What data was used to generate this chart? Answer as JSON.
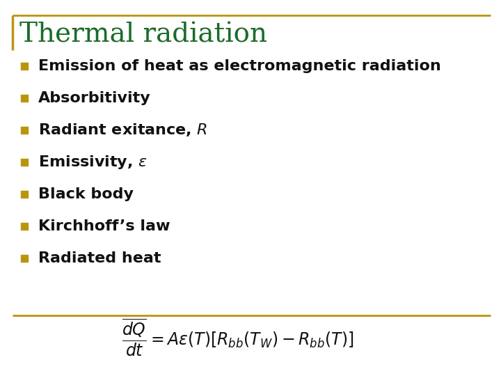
{
  "title": "Thermal radiation",
  "title_color": "#1B6B2A",
  "title_fontsize": 28,
  "border_color": "#B8960C",
  "bullet_color": "#B8960C",
  "bullet_items": [
    "Emission of heat as electromagnetic radiation",
    "Absorbitivity",
    "Radiant exitance, $\\mathit{R}$",
    "Emissivity, $\\varepsilon$",
    "Black body",
    "Kirchhoff’s law",
    "Radiated heat"
  ],
  "bullet_fontsize": 16,
  "text_color": "#111111",
  "formula": "$\\dfrac{\\overline{dQ}}{dt} = A\\varepsilon\\left(T\\right)\\left[R_{bb}\\left(T_W\\right) - R_{bb}\\left(T\\right)\\right]$",
  "formula_fontsize": 17,
  "background_color": "#ffffff",
  "fig_width": 7.2,
  "fig_height": 5.4,
  "dpi": 100
}
